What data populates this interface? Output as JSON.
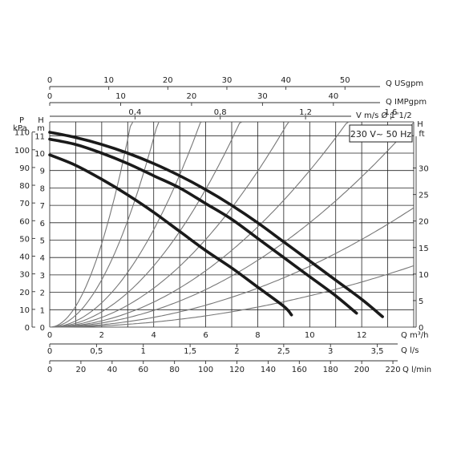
{
  "chart_data": {
    "type": "line",
    "box_label": "230 V~ 50 Hz",
    "x_axis": {
      "unit_label": "Q m³/h",
      "range": [
        0,
        14
      ],
      "ticks": [
        0,
        2,
        4,
        6,
        8,
        10,
        12
      ],
      "tick_labels": [
        "0",
        "2",
        "4",
        "6",
        "8",
        "10",
        "12"
      ],
      "grid_step": 1
    },
    "y_axis_m": {
      "unit_label_top": "H",
      "unit_label_bottom": "m",
      "range": [
        0,
        11.5
      ],
      "ticks": [
        0,
        1,
        2,
        3,
        4,
        5,
        6,
        7,
        8,
        9,
        10,
        11
      ],
      "tick_labels": [
        "0",
        "1",
        "2",
        "3",
        "4",
        "5",
        "6",
        "7",
        "8",
        "9",
        "10",
        "11"
      ]
    },
    "y_axis_kpa": {
      "unit_label_top": "P",
      "unit_label_bottom": "kPa",
      "ticks": [
        0,
        10,
        20,
        30,
        40,
        50,
        60,
        70,
        80,
        90,
        100,
        110
      ],
      "tick_labels": [
        "0",
        "10",
        "20",
        "30",
        "40",
        "50",
        "60",
        "70",
        "80",
        "90",
        "100",
        "110"
      ]
    },
    "y_axis_ft": {
      "unit_label_top": "H",
      "unit_label_bottom": "ft",
      "ticks": [
        0,
        5,
        10,
        15,
        20,
        25,
        30
      ],
      "tick_labels": [
        "0",
        "5",
        "10",
        "15",
        "20",
        "25",
        "30"
      ]
    },
    "top_axes": [
      {
        "name": "Q USgpm",
        "label": "Q USgpm",
        "ticks": [
          0,
          10,
          20,
          30,
          40,
          50
        ],
        "tick_labels": [
          "0",
          "10",
          "20",
          "30",
          "40",
          "50"
        ]
      },
      {
        "name": "Q IMPgpm",
        "label": "Q IMPgpm",
        "ticks": [
          0,
          10,
          20,
          30,
          40
        ],
        "tick_labels": [
          "0",
          "10",
          "20",
          "30",
          "40"
        ]
      },
      {
        "name": "V m/s",
        "label": "V m/s Ø 1\"1/2",
        "ticks": [
          0.4,
          0.8,
          1.2,
          1.6
        ],
        "tick_labels": [
          "0,4",
          "0,8",
          "1,2",
          "1,6"
        ]
      }
    ],
    "bottom_axes": [
      {
        "name": "Q l/s",
        "label": "Q l/s",
        "ticks": [
          0,
          0.5,
          1,
          1.5,
          2,
          2.5,
          3,
          3.5
        ],
        "tick_labels": [
          "0",
          "0,5",
          "1",
          "1,5",
          "2",
          "2,5",
          "3",
          "3,5"
        ]
      },
      {
        "name": "Q l/min",
        "label": "Q l/min",
        "ticks": [
          0,
          20,
          40,
          60,
          80,
          100,
          120,
          140,
          160,
          180,
          200,
          220
        ],
        "tick_labels": [
          "0",
          "20",
          "40",
          "60",
          "80",
          "100",
          "120",
          "140",
          "160",
          "180",
          "200",
          "220"
        ]
      }
    ],
    "series": [
      {
        "x": [
          0,
          1,
          2,
          3,
          4,
          5,
          6,
          7,
          8,
          9,
          10,
          11,
          12,
          12.8
        ],
        "y": [
          11.2,
          10.9,
          10.5,
          10.0,
          9.4,
          8.7,
          7.9,
          7.0,
          6.0,
          4.9,
          3.8,
          2.7,
          1.6,
          0.6
        ]
      },
      {
        "x": [
          0,
          1,
          2,
          3,
          4,
          5,
          6,
          7,
          8,
          9,
          10,
          11,
          11.8
        ],
        "y": [
          10.8,
          10.5,
          10.0,
          9.4,
          8.7,
          8.0,
          7.1,
          6.2,
          5.1,
          4.0,
          2.9,
          1.8,
          0.8
        ]
      },
      {
        "x": [
          0,
          1,
          2,
          3,
          4,
          5,
          6,
          7,
          8,
          9,
          9.3
        ],
        "y": [
          9.9,
          9.3,
          8.5,
          7.6,
          6.6,
          5.5,
          4.4,
          3.4,
          2.3,
          1.2,
          0.7
        ]
      }
    ],
    "system_curves": {
      "k": [
        1.2,
        0.68,
        0.35,
        0.22,
        0.14,
        0.09,
        0.06,
        0.035,
        0.018
      ]
    }
  }
}
